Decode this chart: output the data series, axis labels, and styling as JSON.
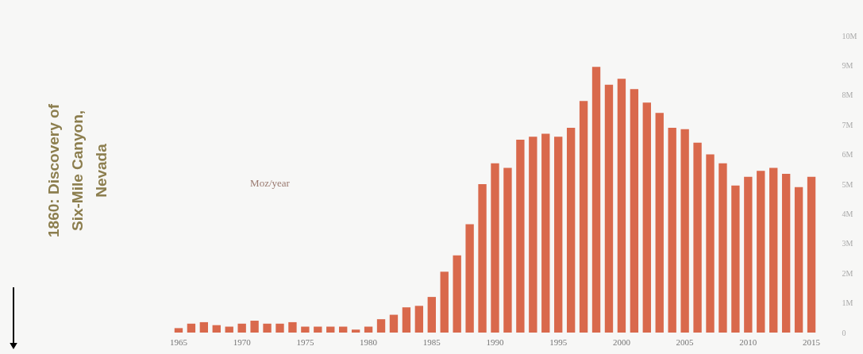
{
  "chart_data": {
    "type": "bar",
    "ylabel": "Moz/year",
    "annotations": [
      "1860: Discovery of\nSix-Mile Canyon,\nNevada"
    ],
    "categories": [
      "1965",
      null,
      null,
      null,
      null,
      "1970",
      null,
      null,
      null,
      null,
      "1975",
      null,
      null,
      null,
      null,
      "1980",
      null,
      null,
      null,
      null,
      "1985",
      null,
      null,
      null,
      null,
      "1990",
      null,
      null,
      null,
      null,
      "1995",
      null,
      null,
      null,
      null,
      "2000",
      null,
      null,
      null,
      null,
      "2005",
      null,
      null,
      null,
      null,
      "2010",
      null,
      null,
      null,
      null,
      "2015"
    ],
    "values": [
      0.15,
      0.3,
      0.35,
      0.25,
      0.2,
      0.3,
      0.4,
      0.3,
      0.3,
      0.35,
      0.2,
      0.2,
      0.2,
      0.2,
      0.1,
      0.2,
      0.45,
      0.6,
      0.85,
      0.9,
      1.2,
      2.05,
      2.6,
      3.65,
      5.0,
      5.7,
      5.55,
      6.5,
      6.6,
      6.7,
      6.6,
      6.9,
      7.8,
      8.95,
      8.35,
      8.55,
      8.2,
      7.75,
      7.4,
      6.9,
      6.85,
      6.4,
      6.0,
      5.7,
      4.95,
      5.25,
      5.45,
      5.55,
      5.35,
      4.9,
      5.25
    ],
    "color": "#d9694c",
    "ylim": [
      0,
      10
    ],
    "yticks": [
      {
        "value": 0,
        "label": "0"
      },
      {
        "value": 1,
        "label": "1M"
      },
      {
        "value": 2,
        "label": "2M"
      },
      {
        "value": 3,
        "label": "3M"
      },
      {
        "value": 4,
        "label": "4M"
      },
      {
        "value": 5,
        "label": "5M"
      },
      {
        "value": 6,
        "label": "6M"
      },
      {
        "value": 7,
        "label": "7M"
      },
      {
        "value": 8,
        "label": "8M"
      },
      {
        "value": 9,
        "label": "9M"
      },
      {
        "value": 10,
        "label": "10M"
      }
    ],
    "grid": false
  }
}
